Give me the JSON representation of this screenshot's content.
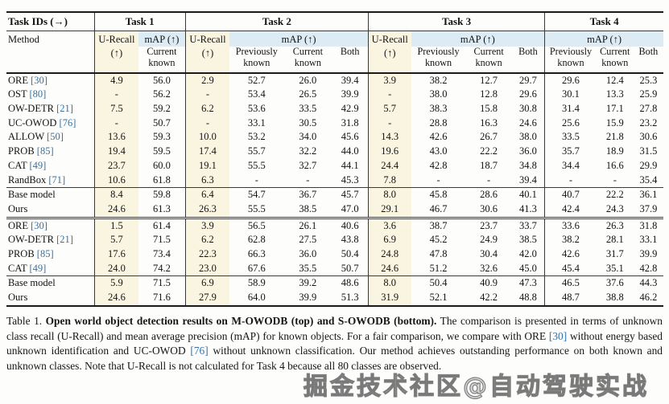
{
  "table": {
    "corner_label": "Task IDs (→)",
    "method_label": "Method",
    "task_labels": [
      "Task 1",
      "Task 2",
      "Task 3",
      "Task 4"
    ],
    "headers": {
      "u_recall": "U-Recall",
      "arrow_up": "(↑)",
      "map": "mAP (↑)",
      "previously_known": "Previously known",
      "current_known": "Current known",
      "both": "Both"
    },
    "sections": [
      {
        "id": "m-owodb-main",
        "rows": [
          {
            "name": "ORE",
            "cite": "[30]",
            "values": [
              "4.9",
              "56.0",
              "2.9",
              "52.7",
              "26.0",
              "39.4",
              "3.9",
              "38.2",
              "12.7",
              "29.7",
              "29.6",
              "12.4",
              "25.3"
            ],
            "bold": []
          },
          {
            "name": "OST",
            "cite": "[80]",
            "values": [
              "-",
              "56.2",
              "-",
              "53.4",
              "26.5",
              "39.9",
              "-",
              "38.0",
              "12.8",
              "29.6",
              "30.1",
              "13.3",
              "25.9"
            ],
            "bold": []
          },
          {
            "name": "OW-DETR",
            "cite": "[21]",
            "values": [
              "7.5",
              "59.2",
              "6.2",
              "53.6",
              "33.5",
              "42.9",
              "5.7",
              "38.3",
              "15.8",
              "30.8",
              "31.4",
              "17.1",
              "27.8"
            ],
            "bold": []
          },
          {
            "name": "UC-OWOD",
            "cite": "[76]",
            "values": [
              "-",
              "50.7",
              "-",
              "33.1",
              "30.5",
              "31.8",
              "-",
              "28.8",
              "16.3",
              "24.6",
              "25.6",
              "15.9",
              "23.2"
            ],
            "bold": []
          },
          {
            "name": "ALLOW",
            "cite": "[50]",
            "values": [
              "13.6",
              "59.3",
              "10.0",
              "53.2",
              "34.0",
              "45.6",
              "14.3",
              "42.6",
              "26.7",
              "38.0",
              "33.5",
              "21.8",
              "30.6"
            ],
            "bold": []
          },
          {
            "name": "PROB",
            "cite": "[85]",
            "values": [
              "19.4",
              "59.5",
              "17.4",
              "55.7",
              "32.2",
              "44.0",
              "19.6",
              "43.0",
              "22.2",
              "36.0",
              "35.7",
              "18.9",
              "31.5"
            ],
            "bold": [
              3
            ]
          },
          {
            "name": "CAT",
            "cite": "[49]",
            "values": [
              "23.7",
              "60.0",
              "19.1",
              "55.5",
              "32.7",
              "44.1",
              "24.4",
              "42.8",
              "18.7",
              "34.8",
              "34.4",
              "16.6",
              "29.9"
            ],
            "bold": []
          },
          {
            "name": "RandBox",
            "cite": "[71]",
            "values": [
              "10.6",
              "61.8",
              "6.3",
              "-",
              "-",
              "45.3",
              "7.8",
              "-",
              "-",
              "39.4",
              "-",
              "-",
              "35.4"
            ],
            "bold": [
              1
            ]
          }
        ]
      },
      {
        "id": "m-owodb-ours",
        "rows": [
          {
            "name": "Base model",
            "cite": "",
            "values": [
              "8.4",
              "59.8",
              "6.4",
              "54.7",
              "36.7",
              "45.7",
              "8.0",
              "45.8",
              "28.6",
              "40.1",
              "40.7",
              "22.2",
              "36.1"
            ],
            "bold": []
          },
          {
            "name": "Ours",
            "cite": "",
            "method_bold": true,
            "values": [
              "24.6",
              "61.3",
              "26.3",
              "55.5",
              "38.5",
              "47.0",
              "29.1",
              "46.7",
              "30.6",
              "41.3",
              "42.4",
              "24.3",
              "37.9"
            ],
            "bold": [
              0,
              2,
              4,
              5,
              6,
              7,
              8,
              9,
              10,
              11,
              12
            ]
          }
        ]
      },
      {
        "id": "s-owodb-main",
        "rows": [
          {
            "name": "ORE",
            "cite": "[30]",
            "values": [
              "1.5",
              "61.4",
              "3.9",
              "56.5",
              "26.1",
              "40.6",
              "3.6",
              "38.7",
              "23.7",
              "33.7",
              "33.6",
              "26.3",
              "31.8"
            ],
            "bold": []
          },
          {
            "name": "OW-DETR",
            "cite": "[21]",
            "values": [
              "5.7",
              "71.5",
              "6.2",
              "62.8",
              "27.5",
              "43.8",
              "6.9",
              "45.2",
              "24.9",
              "38.5",
              "38.2",
              "28.1",
              "33.1"
            ],
            "bold": []
          },
          {
            "name": "PROB",
            "cite": "[85]",
            "values": [
              "17.6",
              "73.4",
              "22.3",
              "66.3",
              "36.0",
              "50.4",
              "24.8",
              "47.8",
              "30.4",
              "42.0",
              "42.6",
              "31.7",
              "39.9"
            ],
            "bold": []
          },
          {
            "name": "CAT",
            "cite": "[49]",
            "values": [
              "24.0",
              "74.2",
              "23.0",
              "67.6",
              "35.5",
              "50.7",
              "24.6",
              "51.2",
              "32.6",
              "45.0",
              "45.4",
              "35.1",
              "42.8"
            ],
            "bold": [
              1,
              3
            ]
          }
        ]
      },
      {
        "id": "s-owodb-ours",
        "rows": [
          {
            "name": "Base model",
            "cite": "",
            "values": [
              "5.9",
              "71.5",
              "6.9",
              "58.9",
              "39.2",
              "48.6",
              "8.0",
              "50.4",
              "40.9",
              "47.3",
              "46.5",
              "37.6",
              "44.3"
            ],
            "bold": []
          },
          {
            "name": "Ours",
            "cite": "",
            "method_bold": true,
            "values": [
              "24.6",
              "71.6",
              "27.9",
              "64.0",
              "39.9",
              "51.3",
              "31.9",
              "52.1",
              "42.2",
              "48.8",
              "48.7",
              "38.8",
              "46.2"
            ],
            "bold": [
              0,
              2,
              4,
              5,
              6,
              7,
              8,
              9,
              10,
              11,
              12
            ]
          }
        ]
      }
    ]
  },
  "caption": {
    "prefix": "Table 1. ",
    "bold_title": "Open world object detection results on M-OWODB (top) and S-OWODB (bottom).",
    "body1": " The comparison is presented in terms of unknown class recall (U-Recall) and mean average precision (mAP) for known objects. For a fair comparison, we compare with ORE ",
    "cite1": "[30]",
    "body2": " without energy based unknown identification and UC-OWOD ",
    "cite2": "[76]",
    "body3": " without unknown classification. Our method achieves outstanding performance on both known and unknown classes. Note that U-Recall is not calculated for Task 4 because all 80 classes are observed."
  },
  "watermark_text": "掘金技术社区@自动驾驶实战"
}
